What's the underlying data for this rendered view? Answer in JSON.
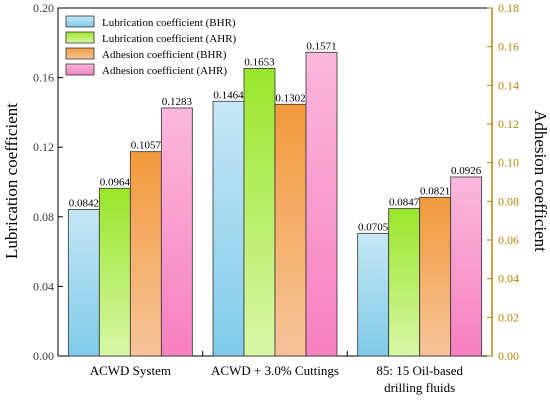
{
  "chart_data": {
    "type": "bar",
    "categories": [
      [
        "ACWD System"
      ],
      [
        "ACWD + 3.0% Cuttings"
      ],
      [
        "85: 15 Oil-based",
        "drilling fluids"
      ]
    ],
    "ylabel_left": "Lubrication coefficient",
    "ylabel_right": "Adhesion coefficient",
    "ylim_left": [
      0,
      0.2
    ],
    "ylim_right": [
      0,
      0.18
    ],
    "yticks_left": [
      "0.00",
      "0.04",
      "0.08",
      "0.12",
      "0.16",
      "0.20"
    ],
    "yticks_right": [
      "0.00",
      "0.02",
      "0.04",
      "0.06",
      "0.08",
      "0.10",
      "0.12",
      "0.14",
      "0.16",
      "0.18"
    ],
    "legend_position": "top-left",
    "series": [
      {
        "name": "Lubrication coefficient (BHR)",
        "axis": "left",
        "values": [
          0.0842,
          0.1464,
          0.0705
        ],
        "labels": [
          "0.0842",
          "0.1464",
          "0.0705"
        ],
        "color_top": "#c6e7f5",
        "color_bottom": "#7fcbe9"
      },
      {
        "name": "Lubrication coefficient (AHR)",
        "axis": "left",
        "values": [
          0.0964,
          0.1653,
          0.0847
        ],
        "labels": [
          "0.0964",
          "0.1653",
          "0.0847"
        ],
        "color_top": "#9ae62a",
        "color_bottom": "#d8f7a8"
      },
      {
        "name": "Adhesion coefficient (BHR)",
        "axis": "right",
        "values": [
          0.1057,
          0.1302,
          0.0821
        ],
        "labels": [
          "0.1057",
          "0.1302",
          "0.0821"
        ],
        "color_top": "#f29a3c",
        "color_bottom": "#f7c49a"
      },
      {
        "name": "Adhesion coefficient (AHR)",
        "axis": "right",
        "values": [
          0.1283,
          0.1571,
          0.0926
        ],
        "labels": [
          "0.1283",
          "0.1571",
          "0.0926"
        ],
        "color_top": "#fbb8dc",
        "color_bottom": "#f77fc0"
      }
    ],
    "colors": {
      "left_axis": "#3a3a3a",
      "right_axis": "#b8860b"
    }
  }
}
